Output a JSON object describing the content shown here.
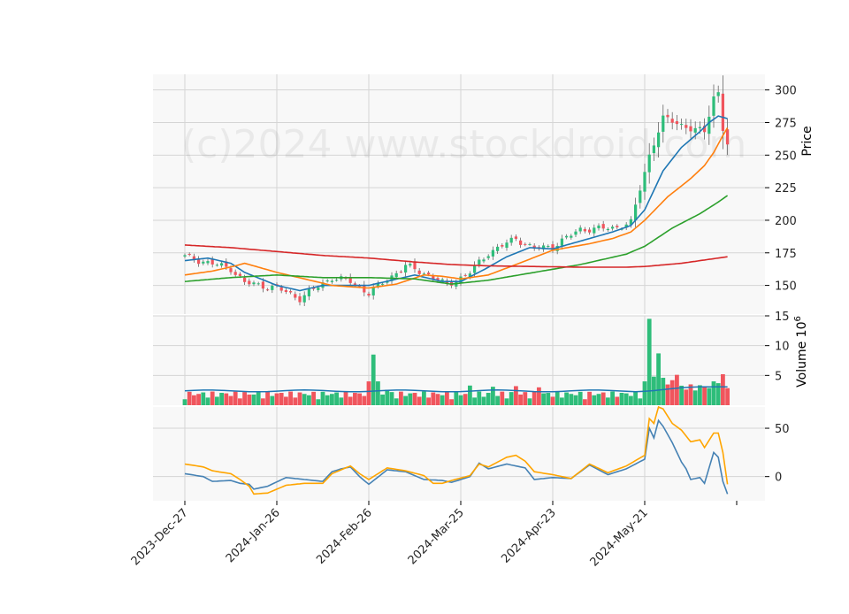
{
  "watermark": "(c)2024 www.stockdroid.com",
  "colors": {
    "up": "#2ebd7a",
    "down": "#f0555d",
    "panel_bg": "#f8f8f8",
    "grid": "#d5d5d5",
    "ma_short": "#1f77b4",
    "ma_mid": "#ff7f0e",
    "ma_long": "#2ca02c",
    "ma_longest": "#d62728",
    "osc_a": "#4682b4",
    "osc_b": "#ffa500",
    "volume_ma": "#1f77b4"
  },
  "chart_data": {
    "type": "candlestick",
    "x_tick_labels": [
      "2023-Dec-27",
      "2024-Jan-26",
      "2024-Feb-26",
      "2024-Mar-25",
      "2024-Apr-23",
      "2024-May-21"
    ],
    "x_tick_indices": [
      0,
      20,
      40,
      60,
      80,
      100
    ],
    "n_bars": 119,
    "price_panel": {
      "ylabel": "Price",
      "ylim": [
        128,
        312
      ],
      "yticks": [
        150,
        175,
        200,
        225,
        250,
        275,
        300
      ],
      "key_points": [
        {
          "i": 0,
          "close": 172
        },
        {
          "i": 10,
          "close": 163
        },
        {
          "i": 13,
          "close": 152
        },
        {
          "i": 20,
          "close": 148
        },
        {
          "i": 25,
          "close": 140
        },
        {
          "i": 32,
          "close": 156
        },
        {
          "i": 36,
          "close": 153
        },
        {
          "i": 40,
          "close": 144
        },
        {
          "i": 48,
          "close": 165
        },
        {
          "i": 53,
          "close": 158
        },
        {
          "i": 57,
          "close": 150
        },
        {
          "i": 62,
          "close": 160
        },
        {
          "i": 66,
          "close": 175
        },
        {
          "i": 72,
          "close": 186
        },
        {
          "i": 76,
          "close": 178
        },
        {
          "i": 80,
          "close": 180
        },
        {
          "i": 86,
          "close": 193
        },
        {
          "i": 93,
          "close": 194
        },
        {
          "i": 97,
          "close": 198
        },
        {
          "i": 101,
          "close": 250
        },
        {
          "i": 104,
          "close": 278
        },
        {
          "i": 107,
          "close": 275
        },
        {
          "i": 110,
          "close": 270
        },
        {
          "i": 113,
          "close": 268
        },
        {
          "i": 115,
          "close": 295
        },
        {
          "i": 116,
          "close": 298
        },
        {
          "i": 117,
          "close": 270
        },
        {
          "i": 118,
          "close": 258
        }
      ],
      "moving_averages": [
        {
          "key": "ma_short",
          "points": [
            [
              0,
              169
            ],
            [
              5,
              171
            ],
            [
              10,
              167
            ],
            [
              13,
              160
            ],
            [
              20,
              150
            ],
            [
              25,
              146
            ],
            [
              30,
              150
            ],
            [
              40,
              150
            ],
            [
              50,
              158
            ],
            [
              56,
              153
            ],
            [
              60,
              153
            ],
            [
              65,
              162
            ],
            [
              70,
              172
            ],
            [
              75,
              179
            ],
            [
              80,
              178
            ],
            [
              85,
              183
            ],
            [
              93,
              191
            ],
            [
              97,
              196
            ],
            [
              100,
              208
            ],
            [
              104,
              238
            ],
            [
              108,
              256
            ],
            [
              112,
              268
            ],
            [
              114,
              275
            ],
            [
              116,
              280
            ],
            [
              118,
              278
            ]
          ]
        },
        {
          "key": "ma_mid",
          "points": [
            [
              0,
              158
            ],
            [
              6,
              161
            ],
            [
              11,
              165
            ],
            [
              13,
              167
            ],
            [
              20,
              160
            ],
            [
              26,
              155
            ],
            [
              32,
              150
            ],
            [
              40,
              148
            ],
            [
              46,
              151
            ],
            [
              52,
              158
            ],
            [
              56,
              157
            ],
            [
              60,
              155
            ],
            [
              66,
              158
            ],
            [
              72,
              166
            ],
            [
              80,
              177
            ],
            [
              88,
              182
            ],
            [
              93,
              186
            ],
            [
              97,
              191
            ],
            [
              100,
              200
            ],
            [
              105,
              218
            ],
            [
              110,
              232
            ],
            [
              113,
              242
            ],
            [
              115,
              252
            ],
            [
              117,
              265
            ],
            [
              118,
              271
            ]
          ]
        },
        {
          "key": "ma_long",
          "points": [
            [
              0,
              153
            ],
            [
              10,
              156
            ],
            [
              20,
              158
            ],
            [
              30,
              156
            ],
            [
              40,
              156
            ],
            [
              50,
              155
            ],
            [
              58,
              151
            ],
            [
              66,
              154
            ],
            [
              76,
              160
            ],
            [
              86,
              166
            ],
            [
              96,
              174
            ],
            [
              100,
              180
            ],
            [
              106,
              194
            ],
            [
              112,
              205
            ],
            [
              116,
              214
            ],
            [
              118,
              219
            ]
          ]
        },
        {
          "key": "ma_longest",
          "points": [
            [
              0,
              181
            ],
            [
              10,
              179
            ],
            [
              20,
              176
            ],
            [
              30,
              173
            ],
            [
              40,
              171
            ],
            [
              50,
              168
            ],
            [
              58,
              166
            ],
            [
              66,
              165
            ],
            [
              76,
              164.5
            ],
            [
              86,
              164
            ],
            [
              96,
              164
            ],
            [
              100,
              164.5
            ],
            [
              108,
              167
            ],
            [
              114,
              170
            ],
            [
              118,
              172
            ]
          ]
        }
      ]
    },
    "volume_panel": {
      "ylabel": "Volume  10^6",
      "ylim": [
        0,
        15
      ],
      "yticks": [
        5,
        10,
        15
      ],
      "ma_level": 2.4,
      "spikes": [
        {
          "i": 40,
          "value": 4.0
        },
        {
          "i": 41,
          "value": 8.5
        },
        {
          "i": 42,
          "value": 4.0
        },
        {
          "i": 44,
          "value": 2.6
        },
        {
          "i": 62,
          "value": 3.3
        },
        {
          "i": 67,
          "value": 3.1
        },
        {
          "i": 72,
          "value": 3.2
        },
        {
          "i": 77,
          "value": 3.0
        },
        {
          "i": 100,
          "value": 4.0
        },
        {
          "i": 101,
          "value": 14.5
        },
        {
          "i": 102,
          "value": 4.8
        },
        {
          "i": 103,
          "value": 8.7
        },
        {
          "i": 104,
          "value": 4.6
        },
        {
          "i": 106,
          "value": 4.2
        },
        {
          "i": 107,
          "value": 5.1
        },
        {
          "i": 115,
          "value": 4.0
        },
        {
          "i": 116,
          "value": 3.7
        },
        {
          "i": 117,
          "value": 5.2
        }
      ]
    },
    "oscillator_panel": {
      "ylim": [
        -25,
        72
      ],
      "yticks": [
        0,
        50
      ],
      "series": [
        {
          "key": "osc_a",
          "points": [
            [
              0,
              3
            ],
            [
              4,
              0
            ],
            [
              6,
              -5
            ],
            [
              10,
              -4
            ],
            [
              12,
              -7
            ],
            [
              14,
              -8
            ],
            [
              15,
              -13
            ],
            [
              18,
              -10
            ],
            [
              22,
              -1
            ],
            [
              26,
              -3
            ],
            [
              30,
              -5
            ],
            [
              32,
              5
            ],
            [
              34,
              8
            ],
            [
              36,
              10
            ],
            [
              38,
              0
            ],
            [
              40,
              -8
            ],
            [
              44,
              7
            ],
            [
              48,
              5
            ],
            [
              52,
              -3
            ],
            [
              56,
              -4
            ],
            [
              58,
              -6
            ],
            [
              62,
              0
            ],
            [
              64,
              14
            ],
            [
              66,
              8
            ],
            [
              70,
              13
            ],
            [
              74,
              9
            ],
            [
              76,
              -3
            ],
            [
              80,
              -1
            ],
            [
              84,
              -2
            ],
            [
              88,
              12
            ],
            [
              92,
              2
            ],
            [
              96,
              8
            ],
            [
              100,
              18
            ],
            [
              101,
              50
            ],
            [
              102,
              40
            ],
            [
              103,
              58
            ],
            [
              104,
              52
            ],
            [
              106,
              35
            ],
            [
              108,
              15
            ],
            [
              109,
              8
            ],
            [
              110,
              -3
            ],
            [
              112,
              -1
            ],
            [
              113,
              -7
            ],
            [
              115,
              25
            ],
            [
              116,
              20
            ],
            [
              117,
              -5
            ],
            [
              118,
              -18
            ]
          ]
        },
        {
          "key": "osc_b",
          "points": [
            [
              0,
              13
            ],
            [
              4,
              10
            ],
            [
              6,
              6
            ],
            [
              10,
              3
            ],
            [
              12,
              -3
            ],
            [
              14,
              -10
            ],
            [
              15,
              -18
            ],
            [
              18,
              -17
            ],
            [
              22,
              -9
            ],
            [
              26,
              -7
            ],
            [
              30,
              -7
            ],
            [
              32,
              3
            ],
            [
              34,
              7
            ],
            [
              36,
              11
            ],
            [
              38,
              3
            ],
            [
              40,
              -3
            ],
            [
              44,
              9
            ],
            [
              48,
              6
            ],
            [
              52,
              1
            ],
            [
              54,
              -7
            ],
            [
              56,
              -7
            ],
            [
              58,
              -4
            ],
            [
              62,
              1
            ],
            [
              64,
              13
            ],
            [
              66,
              10
            ],
            [
              70,
              20
            ],
            [
              72,
              22
            ],
            [
              74,
              16
            ],
            [
              76,
              5
            ],
            [
              80,
              2
            ],
            [
              84,
              -2
            ],
            [
              88,
              13
            ],
            [
              92,
              4
            ],
            [
              96,
              11
            ],
            [
              100,
              22
            ],
            [
              101,
              60
            ],
            [
              102,
              55
            ],
            [
              103,
              72
            ],
            [
              104,
              70
            ],
            [
              106,
              55
            ],
            [
              108,
              48
            ],
            [
              110,
              36
            ],
            [
              112,
              38
            ],
            [
              113,
              30
            ],
            [
              115,
              45
            ],
            [
              116,
              45
            ],
            [
              117,
              25
            ],
            [
              118,
              -8
            ]
          ]
        }
      ]
    }
  }
}
